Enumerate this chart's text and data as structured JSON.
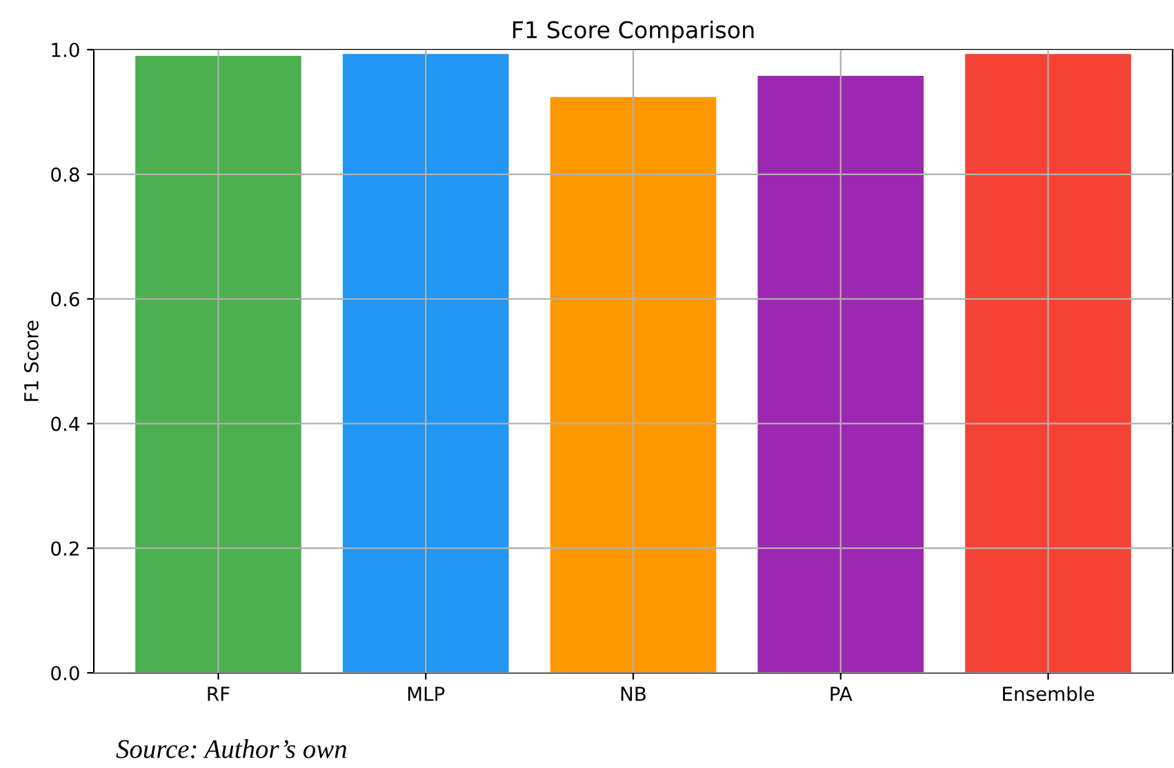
{
  "chart_data": {
    "type": "bar",
    "title": "F1 Score Comparison",
    "ylabel": "F1 Score",
    "categories": [
      "RF",
      "MLP",
      "NB",
      "PA",
      "Ensemble"
    ],
    "values": [
      0.99,
      0.993,
      0.924,
      0.958,
      0.993
    ],
    "colors": [
      "#4caf50",
      "#2196f3",
      "#ff9800",
      "#9c27b0",
      "#f44336"
    ],
    "ylim": [
      0,
      1
    ],
    "yticks": [
      {
        "value": 0,
        "label": "0.0"
      },
      {
        "value": 0.2,
        "label": "0.2"
      },
      {
        "value": 0.4,
        "label": "0.4"
      },
      {
        "value": 0.6,
        "label": "0.6"
      },
      {
        "value": 0.8,
        "label": "0.8"
      },
      {
        "value": 1,
        "label": "1.0"
      }
    ],
    "grid": true,
    "annotations": [
      "Source: Author’s own"
    ]
  }
}
